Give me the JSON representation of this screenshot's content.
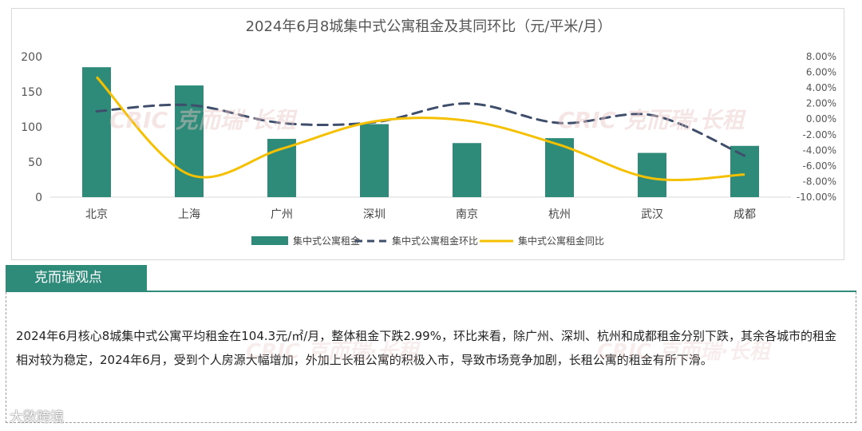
{
  "chart_data": {
    "type": "bar",
    "title": "2024年6月8城集中式公寓租金及其同环比（元/平米/月）",
    "categories": [
      "北京",
      "上海",
      "广州",
      "深圳",
      "南京",
      "杭州",
      "武汉",
      "成都"
    ],
    "series": [
      {
        "name": "集中式公寓租金",
        "chart": "bar",
        "axis": "left",
        "values": [
          185,
          159,
          83,
          104,
          77,
          84,
          63,
          73
        ]
      },
      {
        "name": "集中式公寓租金环比",
        "chart": "line",
        "style": "dashed",
        "axis": "right",
        "values": [
          1.0,
          1.8,
          -0.5,
          -0.4,
          2.0,
          -0.5,
          0.5,
          -4.7
        ]
      },
      {
        "name": "集中式公寓租金同比",
        "chart": "line",
        "style": "smooth",
        "axis": "right",
        "values": [
          5.4,
          -7.1,
          -3.8,
          -0.3,
          -0.2,
          -3.3,
          -7.6,
          -7.1
        ]
      }
    ],
    "y_left": {
      "min": 0,
      "max": 200,
      "ticks": [
        0,
        50,
        100,
        150,
        200
      ]
    },
    "y_right": {
      "min": -10,
      "max": 8,
      "ticks": [
        "8.00%",
        "6.00%",
        "4.00%",
        "2.00%",
        "0.00%",
        "-2.00%",
        "-4.00%",
        "-6.00%",
        "-8.00%",
        "-10.00%"
      ]
    },
    "grid": false,
    "legend": "bottom"
  },
  "colors": {
    "bar": "#2e8b7a",
    "mom": "#3f4e6b",
    "yoy": "#f5c000",
    "accent": "#2e8b7a"
  },
  "viewpoint": {
    "title": "克而瑞观点",
    "text": "2024年6月核心8城集中式公寓平均租金在104.3元/㎡/月，整体租金下跌2.99%，环比来看，除广州、深圳、杭州和成都租金分别下跌，其余各城市的租金相对较为稳定，2024年6月，受到个人房源大幅增加，外加上长租公寓的积极入市，导致市场竞争加剧，长租公寓的租金有所下滑。"
  },
  "watermark": {
    "chart": "CRIC 克而瑞·长租",
    "footer": "大数跨境"
  }
}
